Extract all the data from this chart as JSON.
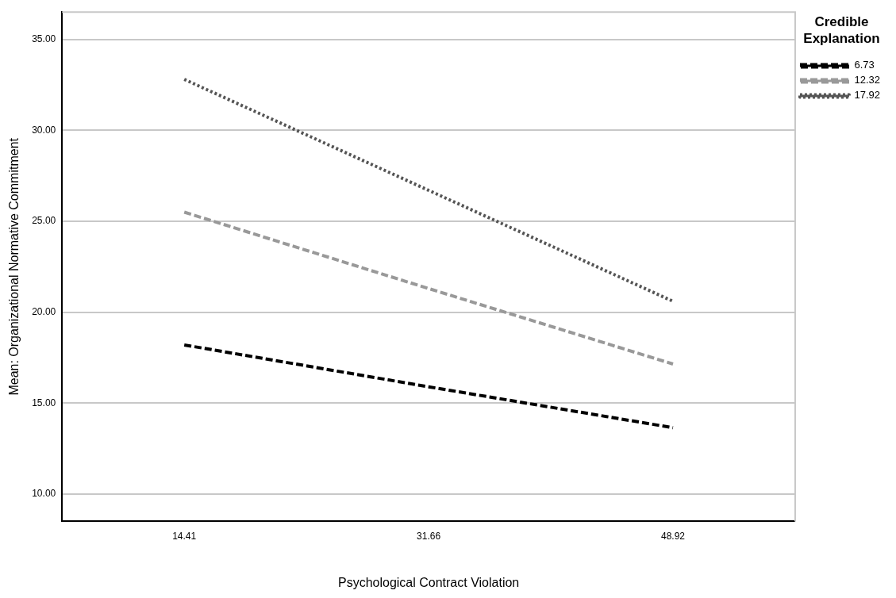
{
  "chart_data": {
    "type": "line",
    "xlabel": "Psychological Contract Violation",
    "ylabel": "Mean: Organizational Normative Commitment",
    "legend_title": "Credible Explanation",
    "categories": [
      "14.41",
      "31.66",
      "48.92"
    ],
    "series": [
      {
        "name": "6.73",
        "color": "#000000",
        "line_style": "dashed",
        "values": [
          18.2,
          15.9,
          13.65
        ]
      },
      {
        "name": "12.32",
        "color": "#999999",
        "line_style": "dashed",
        "values": [
          25.5,
          21.3,
          17.15
        ]
      },
      {
        "name": "17.92",
        "color": "#555555",
        "line_style": "dotted",
        "values": [
          32.8,
          26.7,
          20.6
        ]
      }
    ],
    "ylim": [
      8.5,
      36.5
    ],
    "yticks": [
      {
        "value": 10,
        "label": "10.00"
      },
      {
        "value": 15,
        "label": "15.00"
      },
      {
        "value": 20,
        "label": "20.00"
      },
      {
        "value": 25,
        "label": "25.00"
      },
      {
        "value": 30,
        "label": "30.00"
      },
      {
        "value": 35,
        "label": "35.00"
      }
    ],
    "grid": "y",
    "legend": "top right",
    "marker": "none"
  }
}
